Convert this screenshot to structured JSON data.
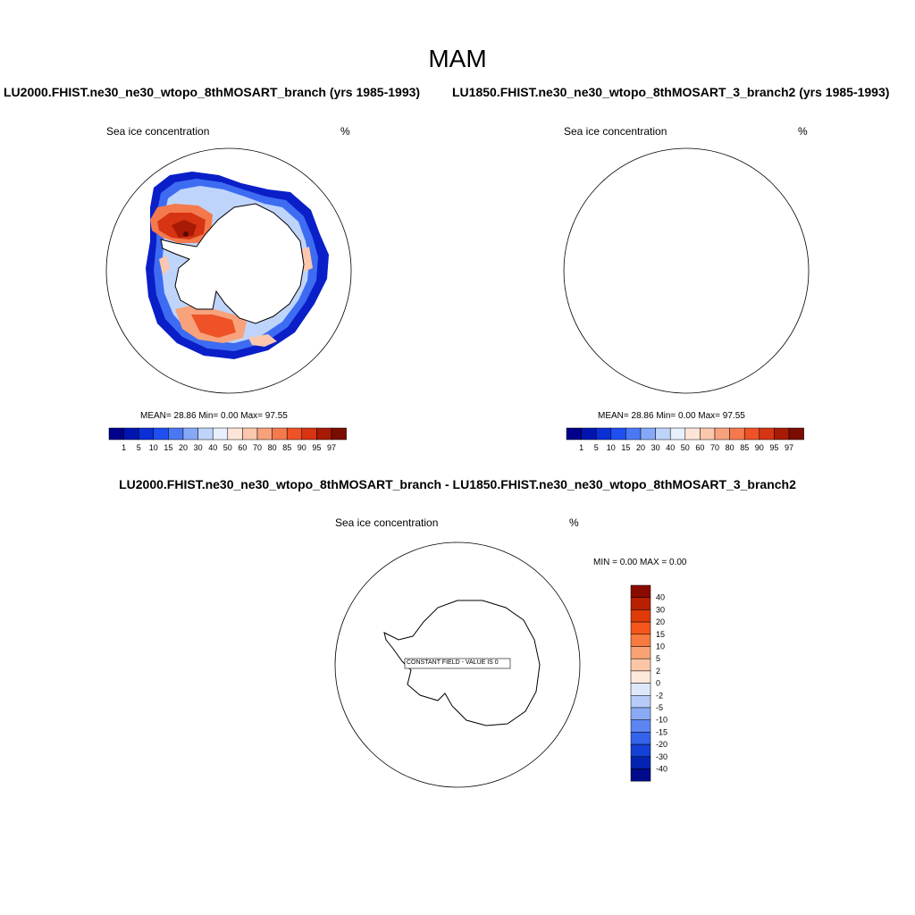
{
  "title": "MAM",
  "panels": [
    {
      "case_title": "LU2000.FHIST.ne30_ne30_wtopo_8thMOSART_branch (yrs 1985-1993)",
      "variable": "Sea ice concentration",
      "units": "%",
      "stats": "MEAN=  28.86  Min=   0.00  Max=  97.55"
    },
    {
      "case_title": "LU1850.FHIST.ne30_ne30_wtopo_8thMOSART_3_branch2 (yrs 1985-1993)",
      "variable": "Sea ice concentration",
      "units": "%",
      "stats": "MEAN=  28.86  Min=   0.00  Max=  97.55"
    }
  ],
  "diff": {
    "title": "LU2000.FHIST.ne30_ne30_wtopo_8thMOSART_branch - LU1850.FHIST.ne30_ne30_wtopo_8thMOSART_3_branch2",
    "variable": "Sea ice concentration",
    "units": "%",
    "stats": "MIN =   0.00 MAX =   0.00",
    "constant_label": "CONSTANT FIELD - VALUE IS 0"
  },
  "colorbar_main": {
    "labels": [
      "1",
      "5",
      "10",
      "15",
      "20",
      "30",
      "40",
      "50",
      "60",
      "70",
      "80",
      "85",
      "90",
      "95",
      "97"
    ],
    "colors": [
      "#00008a",
      "#0015b0",
      "#0a2fd6",
      "#1f4ff0",
      "#4a78f5",
      "#86a8f8",
      "#bfd4fb",
      "#e8f0fd",
      "#fde6d8",
      "#fbc7ad",
      "#f8a27c",
      "#f47a4e",
      "#ee5226",
      "#d63412",
      "#a81a05",
      "#7a0c00"
    ]
  },
  "colorbar_diff": {
    "labels": [
      "40",
      "30",
      "20",
      "15",
      "10",
      "5",
      "2",
      "0",
      "-2",
      "-5",
      "-10",
      "-15",
      "-20",
      "-30",
      "-40"
    ],
    "colors": [
      "#8a0a00",
      "#b82000",
      "#df3a08",
      "#f4561c",
      "#f77a40",
      "#f9a274",
      "#fbc6a8",
      "#fde8dc",
      "#dfe8fb",
      "#b7cbf8",
      "#8aaaf5",
      "#5d85f2",
      "#3563ec",
      "#1440d6",
      "#0423b0",
      "#000a8a"
    ]
  }
}
